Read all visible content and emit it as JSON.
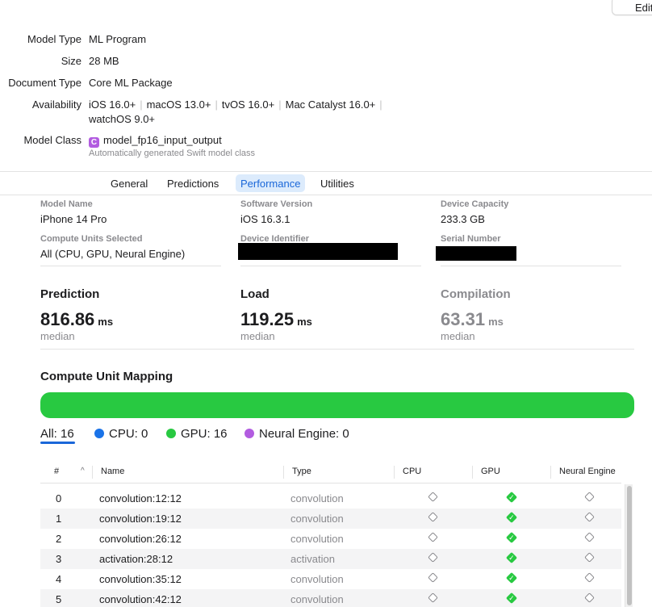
{
  "toolbar": {
    "edit_label": "Edit"
  },
  "model_info": {
    "model_type_key": "Model Type",
    "model_type": "ML Program",
    "size_key": "Size",
    "size": "28 MB",
    "doc_type_key": "Document Type",
    "doc_type": "Core ML Package",
    "availability_key": "Availability",
    "availability": [
      "iOS 16.0+",
      "macOS 13.0+",
      "tvOS 16.0+",
      "Mac Catalyst 16.0+",
      "watchOS 9.0+"
    ],
    "model_class_key": "Model Class",
    "model_class_badge": "C",
    "model_class": "model_fp16_input_output",
    "model_class_note": "Automatically generated Swift model class"
  },
  "tabs": [
    "General",
    "Predictions",
    "Performance",
    "Utilities"
  ],
  "active_tab": "Performance",
  "device": {
    "model_name_label": "Model Name",
    "model_name": "iPhone 14 Pro",
    "software_version_label": "Software Version",
    "software_version": "iOS 16.3.1",
    "device_capacity_label": "Device Capacity",
    "device_capacity": "233.3 GB",
    "compute_units_label": "Compute Units Selected",
    "compute_units": "All (CPU, GPU, Neural Engine)",
    "device_identifier_label": "Device Identifier",
    "serial_number_label": "Serial Number"
  },
  "metrics": [
    {
      "title": "Prediction",
      "value": "816.86",
      "unit": "ms",
      "sub": "median"
    },
    {
      "title": "Load",
      "value": "119.25",
      "unit": "ms",
      "sub": "median"
    },
    {
      "title": "Compilation",
      "value": "63.31",
      "unit": "ms",
      "sub": "median"
    }
  ],
  "mapping": {
    "title": "Compute Unit Mapping",
    "gpu_fraction": 1.0,
    "legend": [
      {
        "label": "All: 16"
      },
      {
        "label": "CPU: 0",
        "color": "#1a73e8"
      },
      {
        "label": "GPU: 16",
        "color": "#28c941"
      },
      {
        "label": "Neural Engine: 0",
        "color": "#b25ce0"
      }
    ]
  },
  "table": {
    "columns": [
      "#",
      "Name",
      "Type",
      "CPU",
      "GPU",
      "Neural Engine"
    ],
    "rows": [
      {
        "idx": "0",
        "name": "convolution:12:12",
        "type": "convolution",
        "cpu": false,
        "gpu": true,
        "ne": false
      },
      {
        "idx": "1",
        "name": "convolution:19:12",
        "type": "convolution",
        "cpu": false,
        "gpu": true,
        "ne": false
      },
      {
        "idx": "2",
        "name": "convolution:26:12",
        "type": "convolution",
        "cpu": false,
        "gpu": true,
        "ne": false
      },
      {
        "idx": "3",
        "name": "activation:28:12",
        "type": "activation",
        "cpu": false,
        "gpu": true,
        "ne": false
      },
      {
        "idx": "4",
        "name": "convolution:35:12",
        "type": "convolution",
        "cpu": false,
        "gpu": true,
        "ne": false
      },
      {
        "idx": "5",
        "name": "convolution:42:12",
        "type": "convolution",
        "cpu": false,
        "gpu": true,
        "ne": false
      }
    ]
  }
}
